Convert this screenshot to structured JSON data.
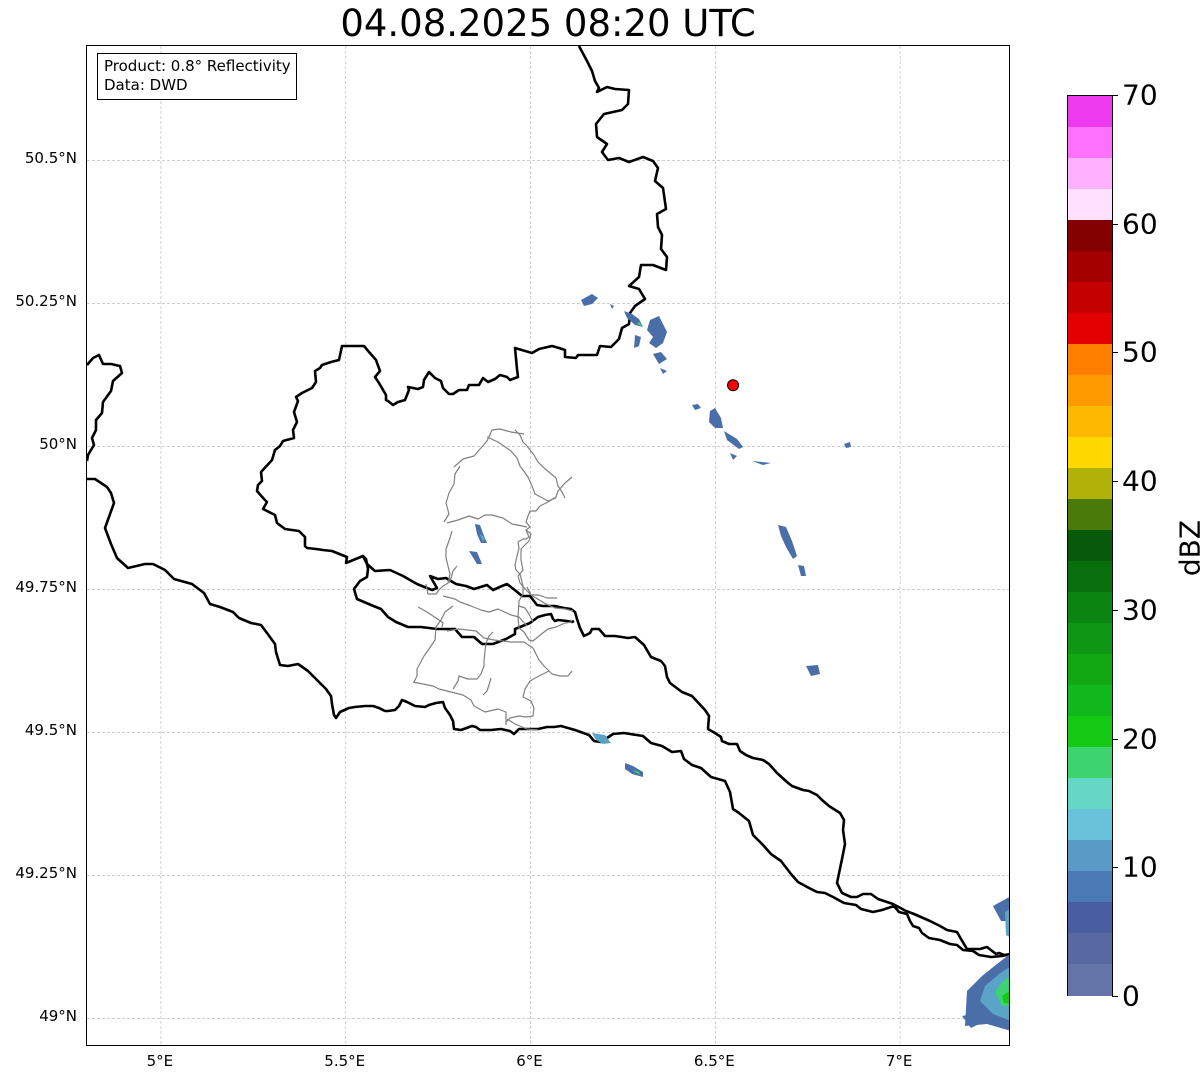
{
  "title": "04.08.2025 08:20 UTC",
  "info_box": {
    "product": "Product: 0.8° Reflectivity",
    "data": "Data: DWD"
  },
  "axes": {
    "lat_ticks": [
      {
        "value": 50.5,
        "label": "50.5°N"
      },
      {
        "value": 50.25,
        "label": "50.25°N"
      },
      {
        "value": 50.0,
        "label": "50°N"
      },
      {
        "value": 49.75,
        "label": "49.75°N"
      },
      {
        "value": 49.5,
        "label": "49.5°N"
      },
      {
        "value": 49.25,
        "label": "49.25°N"
      },
      {
        "value": 49.0,
        "label": "49°N"
      }
    ],
    "lon_ticks": [
      {
        "value": 5.0,
        "label": "5°E"
      },
      {
        "value": 5.5,
        "label": "5.5°E"
      },
      {
        "value": 6.0,
        "label": "6°E"
      },
      {
        "value": 6.5,
        "label": "6.5°E"
      },
      {
        "value": 7.0,
        "label": "7°E"
      }
    ],
    "lon_range": [
      4.8,
      7.3
    ],
    "lat_range": [
      48.95,
      50.7
    ],
    "grid": true
  },
  "radar_site": {
    "lon": 6.548,
    "lat": 50.107,
    "color": "#ff0000"
  },
  "colorbar": {
    "unit": "dBZ",
    "range": [
      0,
      70
    ],
    "ticks": [
      "0",
      "10",
      "20",
      "30",
      "40",
      "50",
      "60",
      "70"
    ],
    "colors": [
      "#6474a8",
      "#5868a0",
      "#485ea0",
      "#4a7ab4",
      "#5a9ac6",
      "#68c2da",
      "#64d8c4",
      "#3cd470",
      "#14c814",
      "#10b81e",
      "#12a812",
      "#0e9614",
      "#0c8412",
      "#096e0c",
      "#065a0a",
      "#4a7a0a",
      "#b0b20a",
      "#ffd800",
      "#ffb800",
      "#ff9a00",
      "#ff7e00",
      "#e40000",
      "#c40000",
      "#a40000",
      "#820000",
      "#ffe0ff",
      "#ffb0ff",
      "#ff70ff",
      "#ee3aee"
    ]
  },
  "echo_colors": {
    "weak": "#4a6ea8",
    "light": "#5aa4c8",
    "moderate": "#3cd470",
    "strong": "#14c814"
  }
}
